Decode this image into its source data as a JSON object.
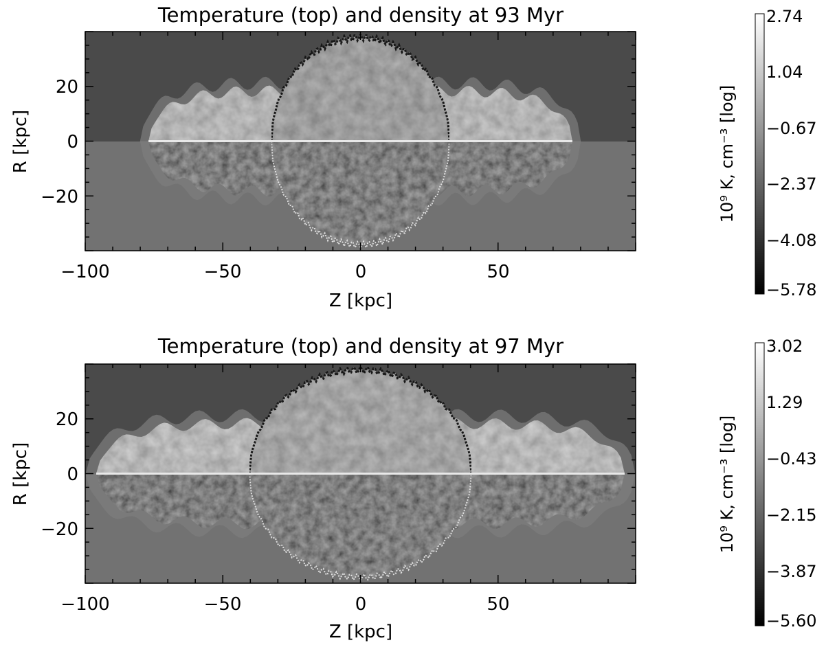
{
  "chart_data": [
    {
      "type": "heatmap",
      "title": "Temperature (top) and density at 93 Myr",
      "xlabel": "Z [kpc]",
      "ylabel": "R [kpc]",
      "xlim": [
        -100,
        100
      ],
      "ylim": [
        -40,
        40
      ],
      "x_ticks": [
        -100,
        -50,
        0,
        50
      ],
      "y_ticks": [
        -20,
        0,
        20
      ],
      "top_half": "temperature",
      "bottom_half": "density",
      "cocoon_z_extent": [
        -77,
        77
      ],
      "cocoon_r_extent": 39,
      "colorbar": {
        "label": "10⁹ K, cm⁻³ [log]",
        "ticks": [
          "2.74",
          "1.04",
          "-0.67",
          "-2.37",
          "-4.08",
          "-5.78"
        ],
        "range": [
          -5.78,
          2.74
        ],
        "colormap": "grayscale"
      }
    },
    {
      "type": "heatmap",
      "title": "Temperature (top) and density at 97 Myr",
      "xlabel": "Z [kpc]",
      "ylabel": "R [kpc]",
      "xlim": [
        -100,
        100
      ],
      "ylim": [
        -40,
        40
      ],
      "x_ticks": [
        -100,
        -50,
        0,
        50
      ],
      "y_ticks": [
        -20,
        0,
        20
      ],
      "top_half": "temperature",
      "bottom_half": "density",
      "cocoon_z_extent": [
        -96,
        96
      ],
      "cocoon_r_extent": 39,
      "colorbar": {
        "label": "10⁹ K, cm⁻³ [log]",
        "ticks": [
          "3.02",
          "1.29",
          "-0.43",
          "-2.15",
          "-3.87",
          "-5.60"
        ],
        "range": [
          -5.6,
          3.02
        ],
        "colormap": "grayscale"
      }
    }
  ]
}
